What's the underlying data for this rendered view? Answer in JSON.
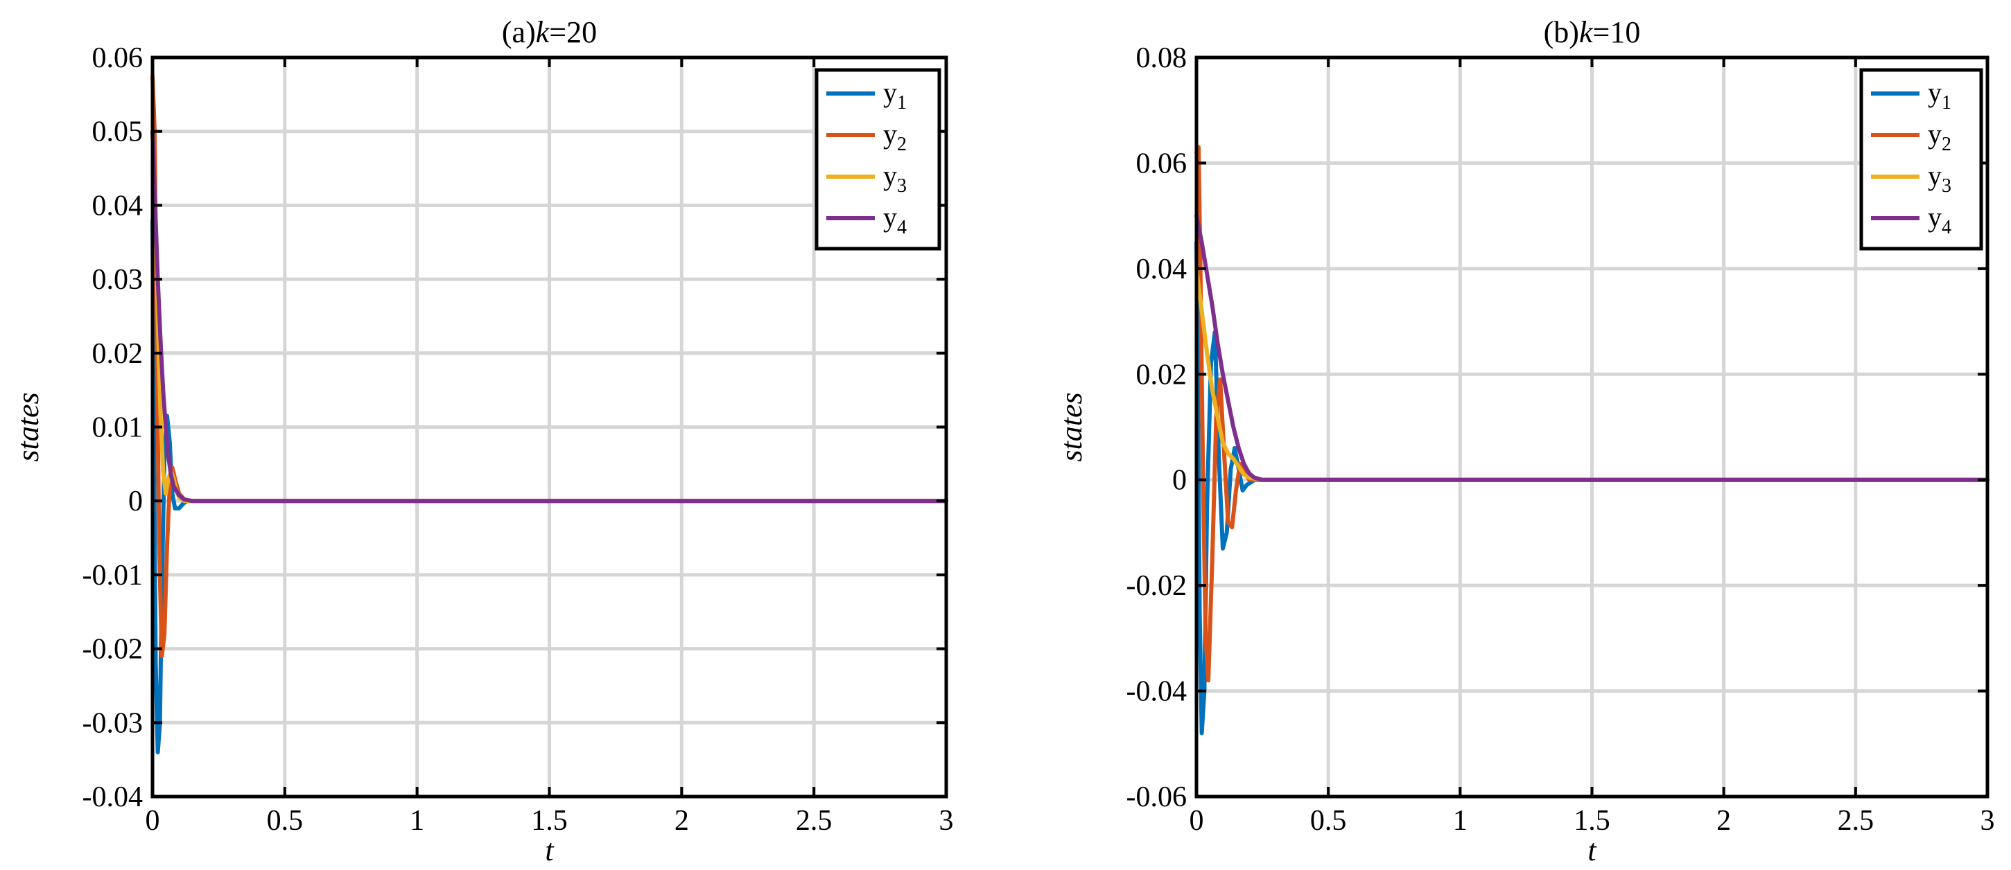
{
  "chart_data": [
    {
      "type": "line",
      "title": "(a)k=20",
      "title_prefix": "(a)",
      "title_var": "k",
      "title_rest": "=20",
      "xlabel": "t",
      "ylabel": "states",
      "xlim": [
        0,
        3
      ],
      "ylim": [
        -0.04,
        0.06
      ],
      "xticks": [
        0,
        0.5,
        1,
        1.5,
        2,
        2.5,
        3
      ],
      "xtick_labels": [
        "0",
        "0.5",
        "1",
        "1.5",
        "2",
        "2.5",
        "3"
      ],
      "yticks": [
        -0.04,
        -0.03,
        -0.02,
        -0.01,
        0,
        0.01,
        0.02,
        0.03,
        0.04,
        0.05,
        0.06
      ],
      "ytick_labels": [
        "-0.04",
        "-0.03",
        "-0.02",
        "-0.01",
        "0",
        "0.01",
        "0.02",
        "0.03",
        "0.04",
        "0.05",
        "0.06"
      ],
      "grid": true,
      "legend_position": "top-right",
      "series": [
        {
          "name": "y1",
          "name_base": "y",
          "name_sub": "1",
          "color": "#0072BD",
          "x": [
            0,
            0.005,
            0.012,
            0.02,
            0.028,
            0.035,
            0.045,
            0.055,
            0.065,
            0.075,
            0.085,
            0.1,
            0.115,
            0.13,
            0.16,
            0.2,
            0.4,
            1,
            2,
            3
          ],
          "y": [
            0.038,
            0.01,
            -0.022,
            -0.034,
            -0.03,
            -0.012,
            0.006,
            0.0115,
            0.008,
            0.001,
            -0.001,
            -0.001,
            -0.0004,
            0.0,
            0.0,
            0.0,
            0.0,
            0.0,
            0.0,
            0.0
          ]
        },
        {
          "name": "y2",
          "name_base": "y",
          "name_sub": "2",
          "color": "#D95319",
          "x": [
            0,
            0.008,
            0.015,
            0.025,
            0.035,
            0.045,
            0.055,
            0.065,
            0.075,
            0.085,
            0.1,
            0.12,
            0.15,
            0.2,
            0.4,
            1,
            2,
            3
          ],
          "y": [
            0.0575,
            0.05,
            0.025,
            -0.005,
            -0.021,
            -0.018,
            -0.006,
            0.002,
            0.0045,
            0.003,
            0.001,
            0.0002,
            0.0,
            0.0,
            0.0,
            0.0,
            0.0,
            0.0
          ]
        },
        {
          "name": "y3",
          "name_base": "y",
          "name_sub": "3",
          "color": "#EDB120",
          "x": [
            0,
            0.01,
            0.02,
            0.03,
            0.04,
            0.05,
            0.06,
            0.07,
            0.08,
            0.09,
            0.1,
            0.12,
            0.15,
            0.2,
            0.4,
            1,
            2,
            3
          ],
          "y": [
            0.05,
            0.04,
            0.025,
            0.012,
            0.004,
            0.001,
            0.003,
            0.004,
            0.003,
            0.0015,
            0.0005,
            0.0,
            0.0,
            0.0,
            0.0,
            0.0,
            0.0,
            0.0
          ]
        },
        {
          "name": "y4",
          "name_base": "y",
          "name_sub": "4",
          "color": "#7E2F8E",
          "x": [
            0,
            0.01,
            0.02,
            0.03,
            0.04,
            0.05,
            0.06,
            0.07,
            0.08,
            0.1,
            0.12,
            0.15,
            0.2,
            0.4,
            1,
            2,
            3
          ],
          "y": [
            0.05,
            0.04,
            0.03,
            0.022,
            0.015,
            0.01,
            0.006,
            0.0035,
            0.002,
            0.0008,
            0.0002,
            0.0,
            0.0,
            0.0,
            0.0,
            0.0,
            0.0
          ]
        }
      ]
    },
    {
      "type": "line",
      "title": "(b)k=10",
      "title_prefix": "(b)",
      "title_var": "k",
      "title_rest": "=10",
      "xlabel": "t",
      "ylabel": "states",
      "xlim": [
        0,
        3
      ],
      "ylim": [
        -0.06,
        0.08
      ],
      "xticks": [
        0,
        0.5,
        1,
        1.5,
        2,
        2.5,
        3
      ],
      "xtick_labels": [
        "0",
        "0.5",
        "1",
        "1.5",
        "2",
        "2.5",
        "3"
      ],
      "yticks": [
        -0.06,
        -0.04,
        -0.02,
        0,
        0.02,
        0.04,
        0.06,
        0.08
      ],
      "ytick_labels": [
        "-0.06",
        "-0.04",
        "-0.02",
        "0",
        "0.02",
        "0.04",
        "0.06",
        "0.08"
      ],
      "grid": true,
      "legend_position": "top-right",
      "series": [
        {
          "name": "y1",
          "name_base": "y",
          "name_sub": "1",
          "color": "#0072BD",
          "x": [
            0,
            0.005,
            0.012,
            0.02,
            0.03,
            0.04,
            0.055,
            0.07,
            0.085,
            0.1,
            0.115,
            0.13,
            0.145,
            0.16,
            0.175,
            0.19,
            0.22,
            0.3,
            1,
            2,
            3
          ],
          "y": [
            0.045,
            0.02,
            -0.025,
            -0.048,
            -0.04,
            -0.005,
            0.022,
            0.028,
            0.004,
            -0.013,
            -0.01,
            0.002,
            0.006,
            0.002,
            -0.002,
            -0.001,
            0.0,
            0.0,
            0.0,
            0.0,
            0.0
          ]
        },
        {
          "name": "y2",
          "name_base": "y",
          "name_sub": "2",
          "color": "#D95319",
          "x": [
            0,
            0.008,
            0.015,
            0.025,
            0.035,
            0.045,
            0.06,
            0.075,
            0.09,
            0.105,
            0.12,
            0.135,
            0.15,
            0.165,
            0.18,
            0.2,
            0.25,
            1,
            2,
            3
          ],
          "y": [
            0.062,
            0.063,
            0.04,
            0.0,
            -0.03,
            -0.038,
            -0.015,
            0.012,
            0.019,
            0.005,
            -0.008,
            -0.009,
            -0.002,
            0.003,
            0.002,
            0.0,
            0.0,
            0.0,
            0.0,
            0.0
          ]
        },
        {
          "name": "y3",
          "name_base": "y",
          "name_sub": "3",
          "color": "#EDB120",
          "x": [
            0,
            0.02,
            0.04,
            0.06,
            0.08,
            0.1,
            0.12,
            0.14,
            0.16,
            0.18,
            0.2,
            0.25,
            1,
            2,
            3
          ],
          "y": [
            0.04,
            0.032,
            0.024,
            0.017,
            0.012,
            0.007,
            0.005,
            0.004,
            0.0025,
            0.001,
            0.0004,
            0.0,
            0.0,
            0.0,
            0.0
          ]
        },
        {
          "name": "y4",
          "name_base": "y",
          "name_sub": "4",
          "color": "#7E2F8E",
          "x": [
            0,
            0.02,
            0.04,
            0.06,
            0.08,
            0.1,
            0.12,
            0.14,
            0.16,
            0.18,
            0.2,
            0.22,
            0.25,
            1,
            2,
            3
          ],
          "y": [
            0.05,
            0.045,
            0.039,
            0.033,
            0.026,
            0.02,
            0.015,
            0.01,
            0.006,
            0.003,
            0.0012,
            0.0004,
            0.0,
            0.0,
            0.0,
            0.0
          ]
        }
      ]
    }
  ]
}
